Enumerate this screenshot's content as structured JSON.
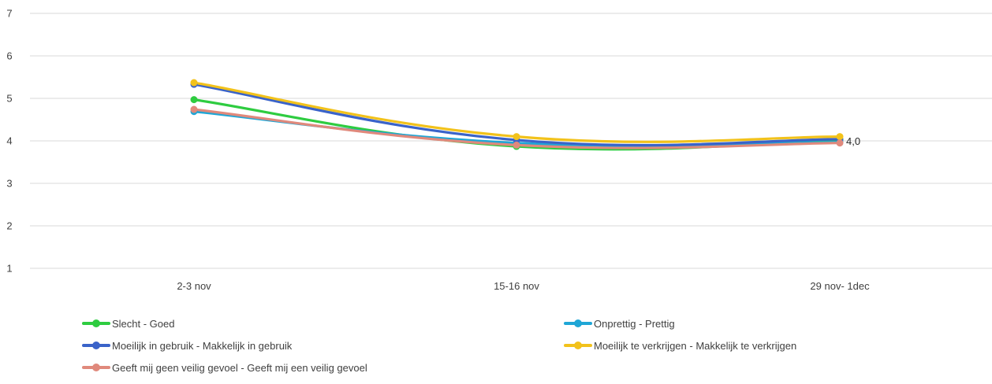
{
  "chart_data": {
    "type": "line",
    "title": "",
    "xlabel": "",
    "ylabel": "",
    "categories": [
      "2-3 nov",
      "15-16 nov",
      "29 nov- 1dec"
    ],
    "ylim": [
      1,
      7
    ],
    "yticks": [
      1,
      2,
      3,
      4,
      5,
      6,
      7
    ],
    "grid": true,
    "legend_position": "bottom",
    "series": [
      {
        "name": "Slecht - Goed",
        "values": [
          4.97,
          3.87,
          4.02
        ],
        "color": "#2ecc40"
      },
      {
        "name": "Onprettig - Prettig",
        "values": [
          4.69,
          3.95,
          3.97
        ],
        "color": "#1fa6d6"
      },
      {
        "name": "Moeilijk in gebruik - Makkelijk in gebruik",
        "values": [
          5.33,
          4.02,
          4.04
        ],
        "color": "#3a63c9"
      },
      {
        "name": "Moeilijk te verkrijgen - Makkelijk te verkrijgen",
        "values": [
          5.37,
          4.1,
          4.1
        ],
        "color": "#f2c21b"
      },
      {
        "name": "Geeft mij geen veilig gevoel - Geeft mij een veilig gevoel",
        "values": [
          4.74,
          3.9,
          3.95
        ],
        "color": "#e0897c"
      }
    ],
    "annotations": [
      {
        "text": "4,0",
        "category": "29 nov- 1dec"
      }
    ]
  }
}
